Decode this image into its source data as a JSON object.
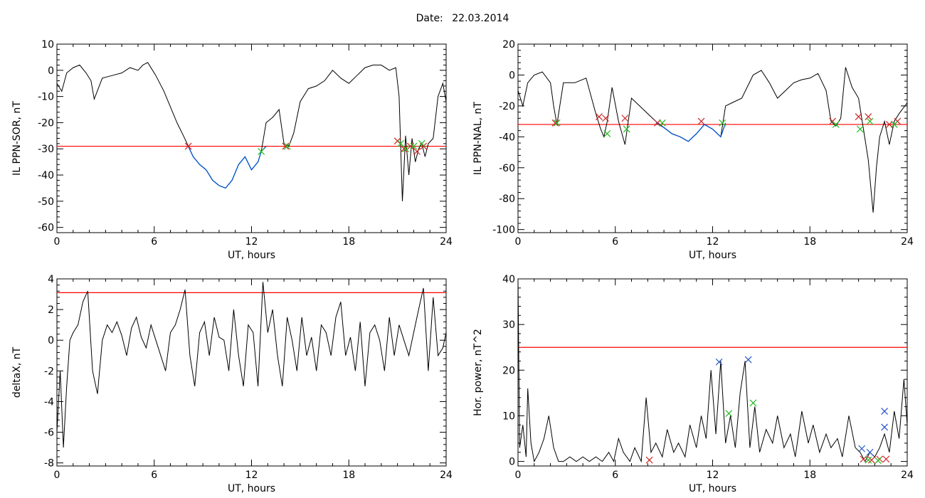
{
  "header": {
    "date_label": "Date:",
    "date_value": "22.03.2014"
  },
  "colors": {
    "data_line": "#000000",
    "threshold": "#ff0000",
    "segment": "#0055cc",
    "marker_red": "#cc2222",
    "marker_green": "#22bb22",
    "marker_blue": "#2255cc"
  },
  "chart_data": [
    {
      "id": "sor",
      "type": "line",
      "ylabel": "IL PPN-SOR, nT",
      "xlabel": "UT, hours",
      "xlim": [
        0,
        24
      ],
      "ylim": [
        -62,
        10
      ],
      "xticks": [
        0,
        6,
        12,
        18,
        24
      ],
      "yticks": [
        10,
        0,
        -10,
        -20,
        -30,
        -40,
        -50,
        -60
      ],
      "threshold": -29,
      "x": [
        0,
        0.3,
        0.6,
        1,
        1.4,
        1.8,
        2.1,
        2.3,
        2.8,
        3.4,
        4,
        4.5,
        5,
        5.3,
        5.6,
        6.1,
        6.6,
        7,
        7.4,
        7.8,
        8.1,
        8.4,
        8.8,
        9.2,
        9.6,
        10,
        10.4,
        10.8,
        11.2,
        11.6,
        12,
        12.4,
        12.6,
        12.9,
        13.3,
        13.7,
        14,
        14.3,
        14.6,
        15,
        15.5,
        16,
        16.5,
        17,
        17.5,
        18,
        18.5,
        19,
        19.5,
        20,
        20.5,
        20.9,
        21.1,
        21.2,
        21.3,
        21.5,
        21.7,
        21.9,
        22.1,
        22.3,
        22.5,
        22.7,
        22.9,
        23.2,
        23.5,
        23.8,
        24
      ],
      "y": [
        -5,
        -8,
        -1,
        1,
        2,
        -1,
        -4,
        -11,
        -3,
        -2,
        -1,
        1,
        0,
        2,
        3,
        -2,
        -8,
        -14,
        -20,
        -25,
        -29,
        -33,
        -36,
        -38,
        -42,
        -44,
        -45,
        -42,
        -36,
        -33,
        -38,
        -35,
        -31,
        -20,
        -18,
        -15,
        -28,
        -29,
        -24,
        -12,
        -7,
        -6,
        -4,
        0,
        -3,
        -5,
        -2,
        1,
        2,
        2,
        0,
        1,
        -10,
        -30,
        -50,
        -25,
        -40,
        -26,
        -35,
        -30,
        -28,
        -33,
        -28,
        -26,
        -10,
        -5,
        -12
      ],
      "segment_x": [
        8.1,
        8.4,
        8.8,
        9.2,
        9.6,
        10,
        10.4,
        10.8,
        11.2,
        11.6,
        12,
        12.4,
        12.6,
        12.9
      ],
      "segment_y": [
        -29,
        -33,
        -36,
        -38,
        -42,
        -44,
        -45,
        -42,
        -36,
        -33,
        -38,
        -35,
        -31,
        -29
      ],
      "markers_red": [
        [
          8.1,
          -29
        ],
        [
          14.1,
          -29
        ],
        [
          21.0,
          -27
        ],
        [
          21.4,
          -30
        ],
        [
          21.8,
          -29
        ],
        [
          22.2,
          -31
        ],
        [
          22.6,
          -29
        ]
      ],
      "markers_green": [
        [
          12.6,
          -31
        ],
        [
          14.2,
          -29
        ],
        [
          21.2,
          -28
        ],
        [
          21.5,
          -30
        ],
        [
          22.0,
          -29
        ],
        [
          22.5,
          -28
        ]
      ]
    },
    {
      "id": "nal",
      "type": "line",
      "ylabel": "IL PPN-NAL, nT",
      "xlabel": "UT, hours",
      "xlim": [
        0,
        24
      ],
      "ylim": [
        -102,
        20
      ],
      "xticks": [
        0,
        6,
        12,
        18,
        24
      ],
      "yticks": [
        20,
        0,
        -20,
        -40,
        -60,
        -80,
        -100
      ],
      "threshold": -32,
      "x": [
        0,
        0.3,
        0.6,
        1,
        1.5,
        2,
        2.2,
        2.4,
        2.8,
        3.5,
        4.2,
        4.8,
        5.1,
        5.3,
        5.5,
        5.8,
        6.2,
        6.6,
        7,
        7.5,
        8,
        8.5,
        9,
        9.5,
        10,
        10.5,
        11,
        11.5,
        12,
        12.5,
        12.8,
        13.2,
        13.8,
        14.5,
        15,
        15.5,
        16,
        16.5,
        17,
        17.5,
        18,
        18.5,
        19,
        19.3,
        19.6,
        19.9,
        20.2,
        20.6,
        21,
        21.3,
        21.6,
        21.9,
        22.1,
        22.3,
        22.6,
        22.9,
        23.2,
        23.5,
        24
      ],
      "y": [
        -10,
        -20,
        -5,
        0,
        2,
        -5,
        -20,
        -32,
        -5,
        -5,
        -2,
        -25,
        -35,
        -40,
        -30,
        -8,
        -30,
        -45,
        -15,
        -20,
        -25,
        -30,
        -34,
        -38,
        -40,
        -43,
        -38,
        -32,
        -35,
        -40,
        -20,
        -18,
        -15,
        0,
        3,
        -5,
        -15,
        -10,
        -5,
        -3,
        -2,
        1,
        -10,
        -30,
        -33,
        -28,
        5,
        -8,
        -15,
        -35,
        -55,
        -89,
        -60,
        -40,
        -30,
        -45,
        -30,
        -25,
        -18
      ],
      "segment_x": [
        8.5,
        9,
        9.5,
        10,
        10.5,
        11,
        11.5,
        12,
        12.5,
        12.8
      ],
      "segment_y": [
        -31,
        -34,
        -38,
        -40,
        -43,
        -38,
        -32,
        -35,
        -40,
        -31
      ],
      "markers_red": [
        [
          2.3,
          -31
        ],
        [
          5.0,
          -27
        ],
        [
          5.4,
          -28
        ],
        [
          6.6,
          -28
        ],
        [
          8.6,
          -31
        ],
        [
          11.3,
          -30
        ],
        [
          19.4,
          -30
        ],
        [
          21.0,
          -27
        ],
        [
          21.6,
          -27
        ],
        [
          22.9,
          -32
        ],
        [
          23.4,
          -30
        ]
      ],
      "markers_green": [
        [
          2.4,
          -31
        ],
        [
          5.5,
          -38
        ],
        [
          6.7,
          -35
        ],
        [
          8.9,
          -31
        ],
        [
          12.6,
          -31
        ],
        [
          19.6,
          -32
        ],
        [
          21.1,
          -35
        ],
        [
          21.7,
          -30
        ],
        [
          23.2,
          -32
        ]
      ]
    },
    {
      "id": "deltax",
      "type": "line",
      "ylabel": "deltaX, nT",
      "xlabel": "UT, hours",
      "xlim": [
        0,
        24
      ],
      "ylim": [
        -8.2,
        4
      ],
      "xticks": [
        0,
        6,
        12,
        18,
        24
      ],
      "yticks": [
        4,
        2,
        0,
        -2,
        -4,
        -6,
        -8
      ],
      "threshold": 3.1,
      "x": [
        0,
        0.2,
        0.4,
        0.6,
        0.8,
        1,
        1.3,
        1.6,
        1.9,
        2.2,
        2.5,
        2.8,
        3.1,
        3.4,
        3.7,
        4,
        4.3,
        4.6,
        4.9,
        5.2,
        5.5,
        5.8,
        6.1,
        6.4,
        6.7,
        7,
        7.3,
        7.6,
        7.9,
        8.2,
        8.5,
        8.8,
        9.1,
        9.4,
        9.7,
        10,
        10.3,
        10.6,
        10.9,
        11.2,
        11.5,
        11.8,
        12.1,
        12.4,
        12.7,
        13,
        13.3,
        13.6,
        13.9,
        14.2,
        14.5,
        14.8,
        15.1,
        15.4,
        15.7,
        16,
        16.3,
        16.6,
        16.9,
        17.2,
        17.5,
        17.8,
        18.1,
        18.4,
        18.7,
        19,
        19.3,
        19.6,
        19.9,
        20.2,
        20.5,
        20.8,
        21.1,
        21.4,
        21.7,
        22,
        22.3,
        22.6,
        22.9,
        23.2,
        23.5,
        23.8,
        24
      ],
      "y": [
        -6,
        -2,
        -7,
        -3,
        0,
        0.5,
        1,
        2.5,
        3.2,
        -2,
        -3.5,
        0,
        1,
        0.5,
        1.2,
        0.3,
        -1,
        0.8,
        1.5,
        0.2,
        -0.5,
        1,
        0,
        -1,
        -2,
        0.5,
        1,
        2,
        3.3,
        -1,
        -3,
        0.5,
        1.2,
        -1,
        1.5,
        0.2,
        0,
        -2,
        2,
        -1,
        -3,
        1,
        0.5,
        -3,
        3.8,
        0.5,
        2,
        -1,
        -3,
        1.5,
        0,
        -2,
        1.5,
        -1,
        0.2,
        -2,
        1,
        0.5,
        -1,
        1.5,
        2.5,
        -1,
        0.2,
        -2,
        1.2,
        -3,
        0.5,
        1,
        0,
        -2,
        1.5,
        -1,
        1,
        0,
        -1,
        0.5,
        2,
        3.4,
        -2,
        2.8,
        -1,
        -0.5,
        0.5
      ],
      "markers_red": [],
      "markers_green": []
    },
    {
      "id": "power",
      "type": "line",
      "ylabel": "Hor. power, nT^2",
      "xlabel": "UT, hours",
      "xlim": [
        0,
        24
      ],
      "ylim": [
        -1,
        40
      ],
      "xticks": [
        0,
        6,
        12,
        18,
        24
      ],
      "yticks": [
        40,
        30,
        20,
        10,
        0
      ],
      "threshold": 25,
      "x": [
        0,
        0.1,
        0.3,
        0.5,
        0.6,
        0.8,
        1,
        1.3,
        1.6,
        1.9,
        2.2,
        2.5,
        2.8,
        3.2,
        3.6,
        4,
        4.4,
        4.8,
        5.2,
        5.6,
        5.9,
        6.2,
        6.5,
        6.9,
        7.2,
        7.6,
        7.9,
        8.2,
        8.5,
        8.9,
        9.2,
        9.6,
        9.9,
        10.3,
        10.6,
        11,
        11.3,
        11.6,
        11.9,
        12.2,
        12.5,
        12.8,
        13.1,
        13.4,
        13.7,
        14,
        14.3,
        14.6,
        14.9,
        15.3,
        15.7,
        16,
        16.4,
        16.8,
        17.1,
        17.5,
        17.9,
        18.2,
        18.6,
        19,
        19.3,
        19.7,
        20,
        20.4,
        20.8,
        21.1,
        21.4,
        21.7,
        22,
        22.3,
        22.6,
        22.9,
        23.2,
        23.5,
        23.8,
        24
      ],
      "y": [
        40,
        3,
        8,
        1,
        16,
        4,
        0,
        2,
        5,
        10,
        3,
        0,
        0,
        1,
        0,
        1,
        0,
        1,
        0,
        2,
        0,
        5,
        2,
        0,
        3,
        0,
        14,
        2,
        4,
        1,
        7,
        2,
        4,
        1,
        8,
        3,
        10,
        5,
        20,
        6,
        22,
        4,
        10,
        3,
        15,
        22,
        3,
        12,
        2,
        7,
        4,
        10,
        3,
        6,
        1,
        11,
        4,
        8,
        2,
        6,
        3,
        5,
        1,
        10,
        3,
        2,
        0,
        2,
        1,
        3,
        6,
        2,
        11,
        5,
        18,
        8
      ],
      "markers_red": [
        [
          8.1,
          0.3
        ],
        [
          21.3,
          0.5
        ],
        [
          21.8,
          0.3
        ],
        [
          22.3,
          0.5
        ],
        [
          22.7,
          0.5
        ]
      ],
      "markers_green": [
        [
          13.0,
          10.5
        ],
        [
          14.5,
          12.8
        ],
        [
          21.6,
          0.3
        ],
        [
          22.2,
          0.2
        ]
      ],
      "markers_blue": [
        [
          12.4,
          21.8
        ],
        [
          14.2,
          22.3
        ],
        [
          21.2,
          2.8
        ],
        [
          21.7,
          2.0
        ],
        [
          22.6,
          11.0
        ],
        [
          22.6,
          7.5
        ]
      ]
    }
  ]
}
